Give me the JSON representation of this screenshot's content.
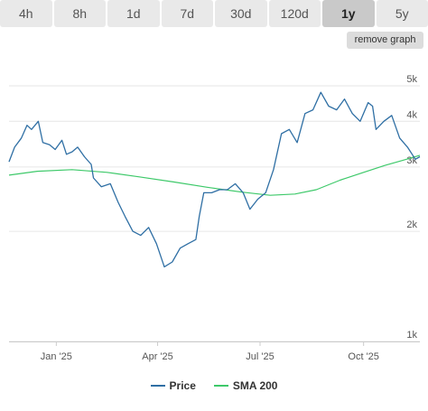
{
  "tabs": [
    {
      "label": "4h",
      "active": false
    },
    {
      "label": "8h",
      "active": false
    },
    {
      "label": "1d",
      "active": false
    },
    {
      "label": "7d",
      "active": false
    },
    {
      "label": "30d",
      "active": false
    },
    {
      "label": "120d",
      "active": false
    },
    {
      "label": "1y",
      "active": true
    },
    {
      "label": "5y",
      "active": false
    }
  ],
  "remove_graph_label": "remove graph",
  "chart_data": {
    "type": "line",
    "xlabel": "",
    "ylabel": "",
    "x_range": [
      "2024-11-20",
      "2025-11-20"
    ],
    "y_scale": "log",
    "ylim": [
      1000,
      6000
    ],
    "y_ticks": [
      {
        "value": 1000,
        "label": "1k"
      },
      {
        "value": 2000,
        "label": "2k"
      },
      {
        "value": 3000,
        "label": "3k"
      },
      {
        "value": 4000,
        "label": "4k"
      },
      {
        "value": 5000,
        "label": "5k"
      }
    ],
    "x_ticks": [
      {
        "date": "2025-01-01",
        "label": "Jan '25"
      },
      {
        "date": "2025-04-01",
        "label": "Apr '25"
      },
      {
        "date": "2025-07-01",
        "label": "Jul '25"
      },
      {
        "date": "2025-10-01",
        "label": "Oct '25"
      }
    ],
    "grid": true,
    "legend_position": "bottom-center",
    "series": [
      {
        "name": "Price",
        "color": "#2f6fa4",
        "points": [
          [
            "2024-11-20",
            3100
          ],
          [
            "2024-11-25",
            3400
          ],
          [
            "2024-12-01",
            3600
          ],
          [
            "2024-12-06",
            3900
          ],
          [
            "2024-12-10",
            3800
          ],
          [
            "2024-12-16",
            4000
          ],
          [
            "2024-12-20",
            3500
          ],
          [
            "2024-12-26",
            3450
          ],
          [
            "2024-12-31",
            3350
          ],
          [
            "2025-01-06",
            3550
          ],
          [
            "2025-01-10",
            3250
          ],
          [
            "2025-01-15",
            3300
          ],
          [
            "2025-01-20",
            3400
          ],
          [
            "2025-01-26",
            3200
          ],
          [
            "2025-02-01",
            3050
          ],
          [
            "2025-02-03",
            2800
          ],
          [
            "2025-02-10",
            2650
          ],
          [
            "2025-02-18",
            2700
          ],
          [
            "2025-02-25",
            2400
          ],
          [
            "2025-03-03",
            2200
          ],
          [
            "2025-03-10",
            2000
          ],
          [
            "2025-03-17",
            1950
          ],
          [
            "2025-03-24",
            2050
          ],
          [
            "2025-03-31",
            1850
          ],
          [
            "2025-04-07",
            1600
          ],
          [
            "2025-04-14",
            1650
          ],
          [
            "2025-04-21",
            1800
          ],
          [
            "2025-04-28",
            1850
          ],
          [
            "2025-05-05",
            1900
          ],
          [
            "2025-05-08",
            2200
          ],
          [
            "2025-05-12",
            2550
          ],
          [
            "2025-05-19",
            2550
          ],
          [
            "2025-05-26",
            2600
          ],
          [
            "2025-06-02",
            2600
          ],
          [
            "2025-06-09",
            2700
          ],
          [
            "2025-06-16",
            2550
          ],
          [
            "2025-06-22",
            2300
          ],
          [
            "2025-06-29",
            2450
          ],
          [
            "2025-07-06",
            2550
          ],
          [
            "2025-07-13",
            2950
          ],
          [
            "2025-07-20",
            3700
          ],
          [
            "2025-07-27",
            3800
          ],
          [
            "2025-08-03",
            3500
          ],
          [
            "2025-08-10",
            4200
          ],
          [
            "2025-08-17",
            4300
          ],
          [
            "2025-08-24",
            4800
          ],
          [
            "2025-08-31",
            4400
          ],
          [
            "2025-09-07",
            4300
          ],
          [
            "2025-09-14",
            4600
          ],
          [
            "2025-09-21",
            4200
          ],
          [
            "2025-09-28",
            4000
          ],
          [
            "2025-10-05",
            4500
          ],
          [
            "2025-10-09",
            4400
          ],
          [
            "2025-10-12",
            3800
          ],
          [
            "2025-10-19",
            4000
          ],
          [
            "2025-10-26",
            4150
          ],
          [
            "2025-11-02",
            3600
          ],
          [
            "2025-11-09",
            3400
          ],
          [
            "2025-11-16",
            3150
          ],
          [
            "2025-11-20",
            3200
          ]
        ]
      },
      {
        "name": "SMA 200",
        "color": "#3ec96a",
        "points": [
          [
            "2024-11-20",
            2850
          ],
          [
            "2024-12-15",
            2920
          ],
          [
            "2025-01-15",
            2950
          ],
          [
            "2025-02-15",
            2900
          ],
          [
            "2025-03-15",
            2820
          ],
          [
            "2025-04-15",
            2730
          ],
          [
            "2025-05-15",
            2640
          ],
          [
            "2025-06-15",
            2560
          ],
          [
            "2025-07-10",
            2510
          ],
          [
            "2025-08-01",
            2530
          ],
          [
            "2025-08-20",
            2600
          ],
          [
            "2025-09-10",
            2760
          ],
          [
            "2025-10-01",
            2900
          ],
          [
            "2025-10-20",
            3030
          ],
          [
            "2025-11-05",
            3130
          ],
          [
            "2025-11-20",
            3230
          ]
        ]
      }
    ]
  }
}
